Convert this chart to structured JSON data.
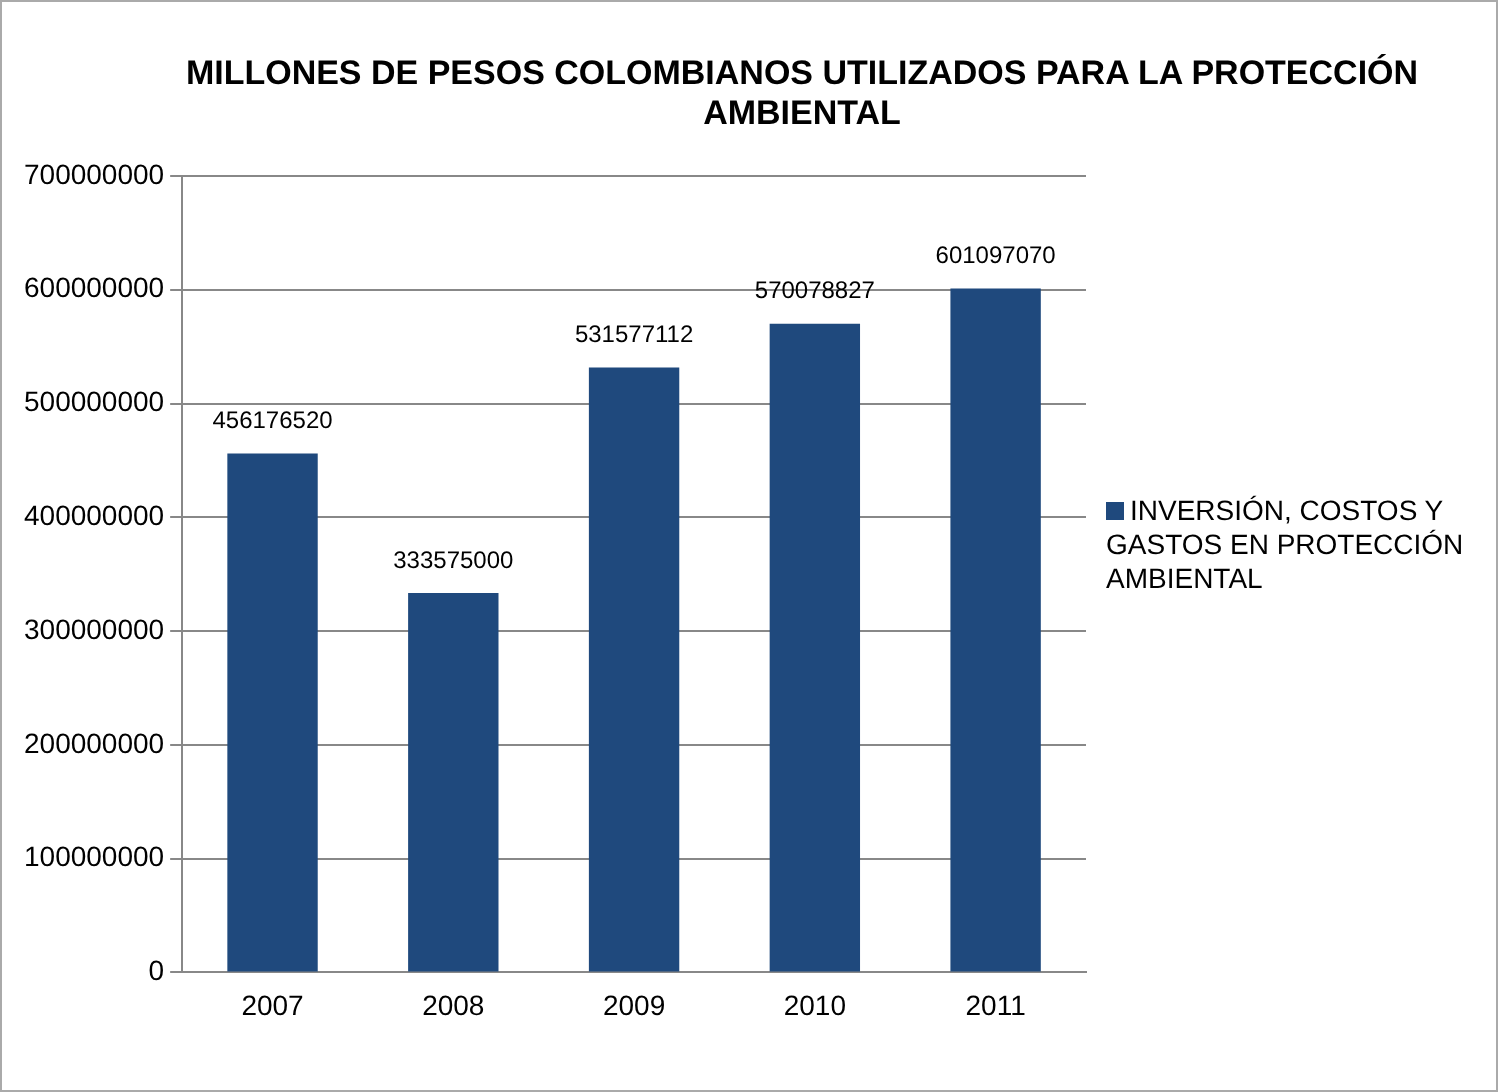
{
  "chart_data": {
    "type": "bar",
    "title": "MILLONES DE PESOS COLOMBIANOS UTILIZADOS PARA LA PROTECCIÓN AMBIENTAL",
    "categories": [
      "2007",
      "2008",
      "2009",
      "2010",
      "2011"
    ],
    "series": [
      {
        "name": "INVERSIÓN, COSTOS Y GASTOS EN PROTECCIÓN AMBIENTAL",
        "color": "#1f497d",
        "values": [
          456176520,
          333575000,
          531577112,
          570078827,
          601097070
        ]
      }
    ],
    "ylim": [
      0,
      700000000
    ],
    "yticks": [
      0,
      100000000,
      200000000,
      300000000,
      400000000,
      500000000,
      600000000,
      700000000
    ],
    "grid": "y",
    "legend": "right",
    "data_labels": true
  }
}
